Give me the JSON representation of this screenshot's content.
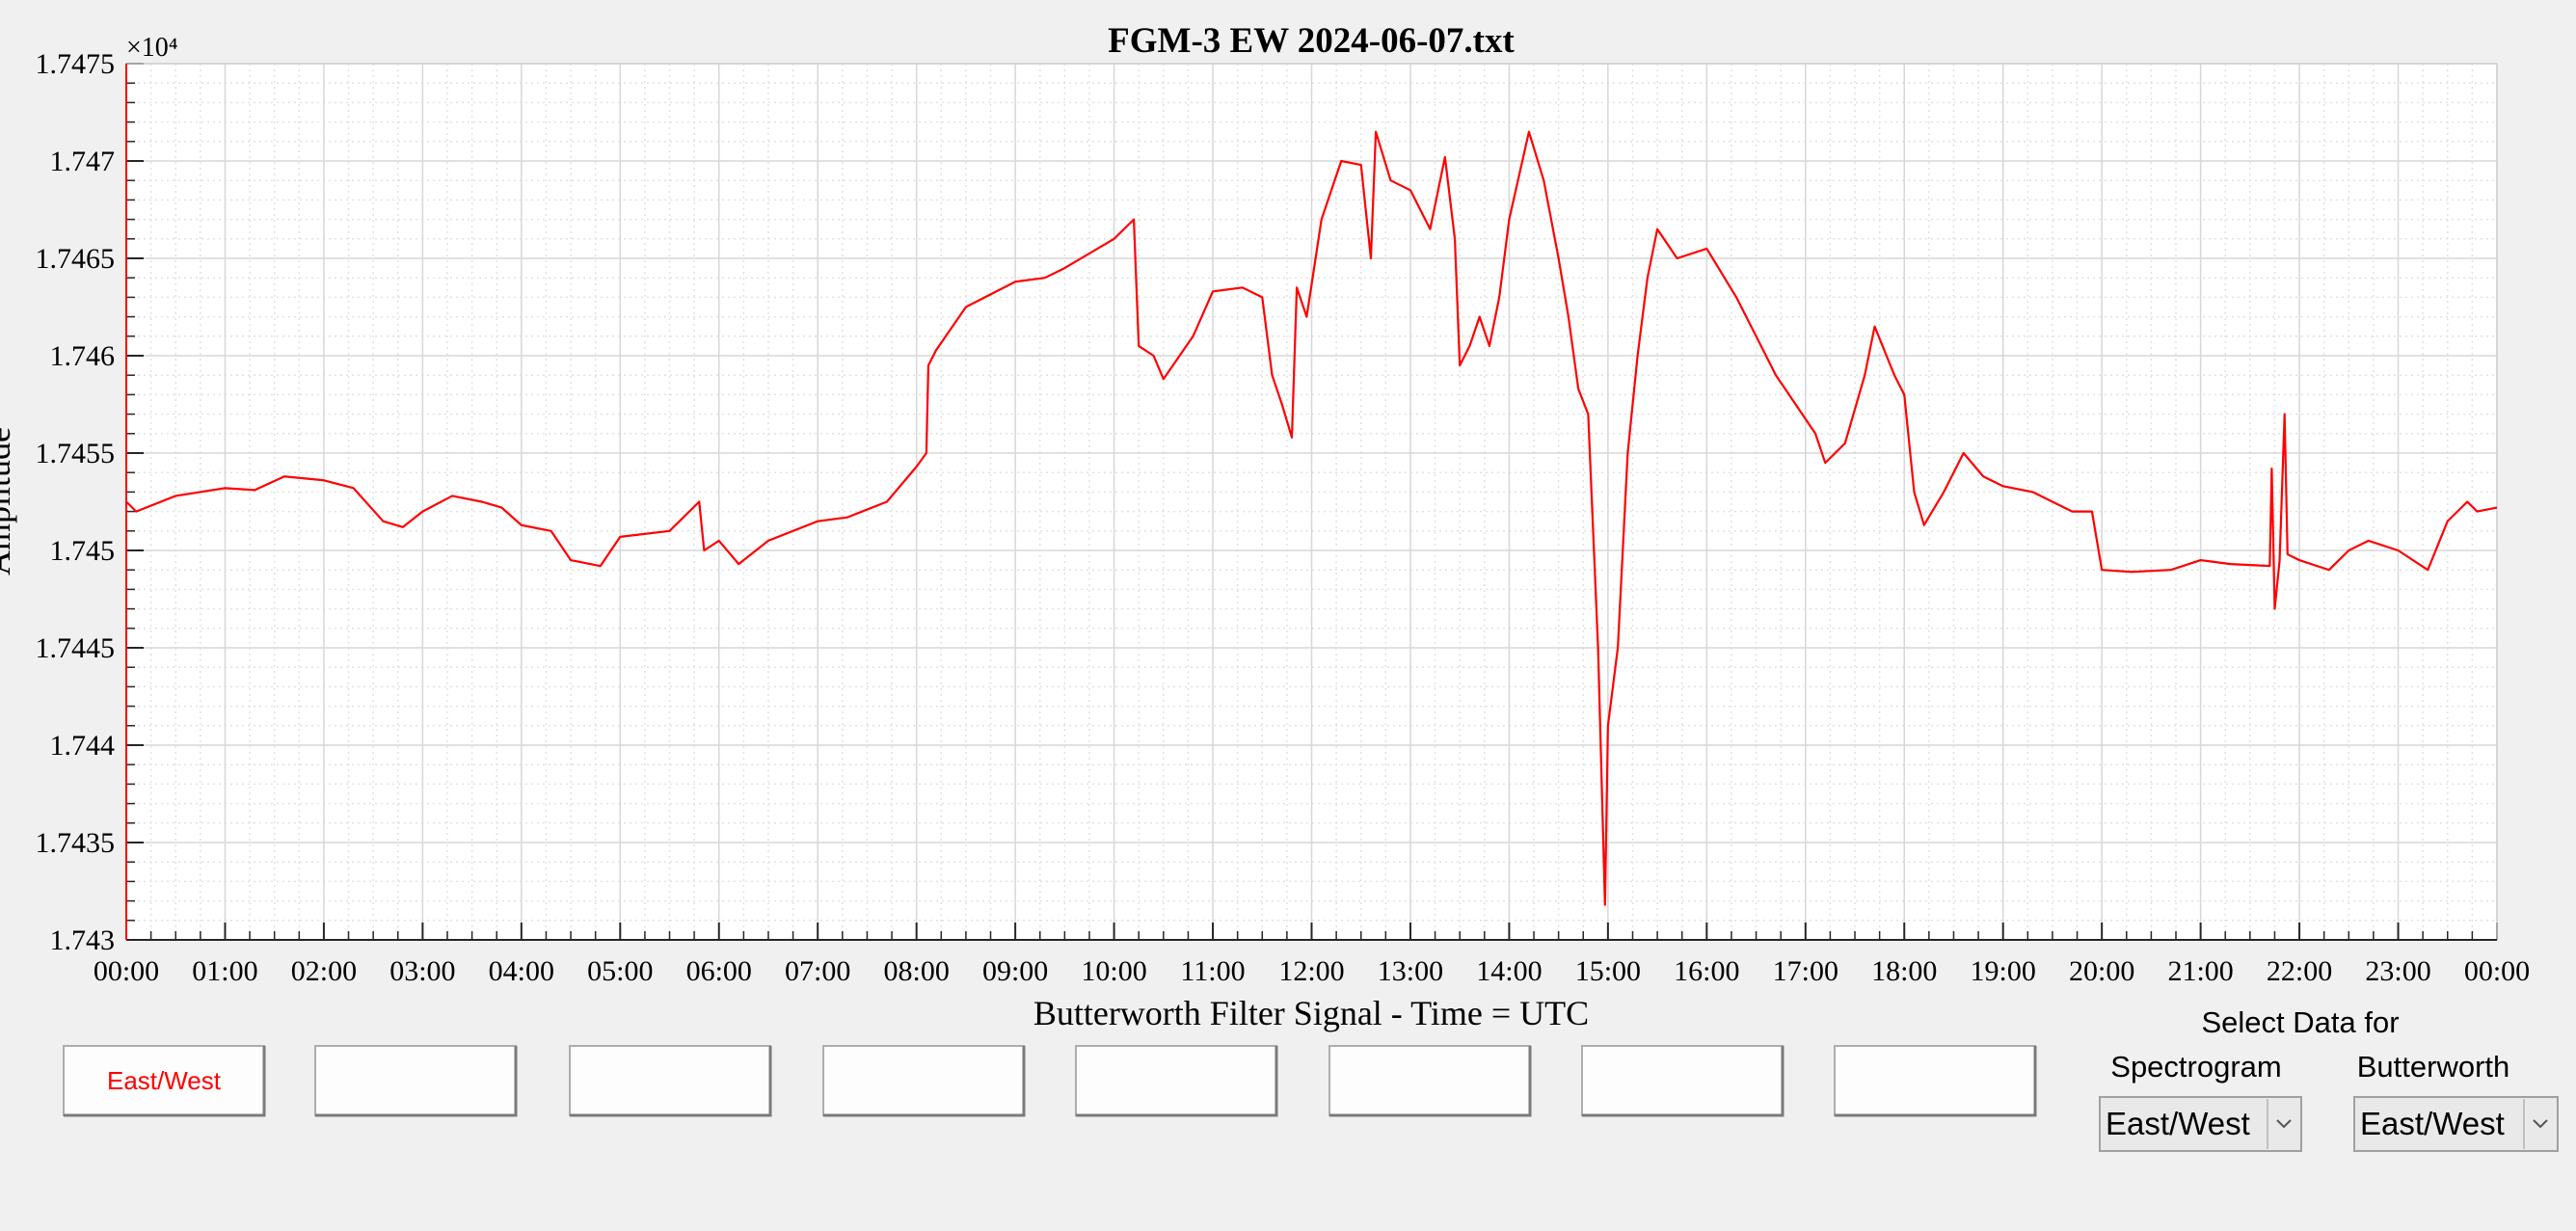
{
  "chart_data": {
    "type": "line",
    "title": "FGM-3 EW 2024-06-07.txt",
    "x_label": "Butterworth Filter Signal - Time = UTC",
    "y_label": "Amplitude",
    "y_exponent": "×10⁴",
    "color": "#ff0000",
    "grid": true,
    "xlim": [
      0,
      24
    ],
    "xticks": [
      {
        "value": 0,
        "label": "00:00"
      },
      {
        "value": 1,
        "label": "01:00"
      },
      {
        "value": 2,
        "label": "02:00"
      },
      {
        "value": 3,
        "label": "03:00"
      },
      {
        "value": 4,
        "label": "04:00"
      },
      {
        "value": 5,
        "label": "05:00"
      },
      {
        "value": 6,
        "label": "06:00"
      },
      {
        "value": 7,
        "label": "07:00"
      },
      {
        "value": 8,
        "label": "08:00"
      },
      {
        "value": 9,
        "label": "09:00"
      },
      {
        "value": 10,
        "label": "10:00"
      },
      {
        "value": 11,
        "label": "11:00"
      },
      {
        "value": 12,
        "label": "12:00"
      },
      {
        "value": 13,
        "label": "13:00"
      },
      {
        "value": 14,
        "label": "14:00"
      },
      {
        "value": 15,
        "label": "15:00"
      },
      {
        "value": 16,
        "label": "16:00"
      },
      {
        "value": 17,
        "label": "17:00"
      },
      {
        "value": 18,
        "label": "18:00"
      },
      {
        "value": 19,
        "label": "19:00"
      },
      {
        "value": 20,
        "label": "20:00"
      },
      {
        "value": 21,
        "label": "21:00"
      },
      {
        "value": 22,
        "label": "22:00"
      },
      {
        "value": 23,
        "label": "23:00"
      },
      {
        "value": 24,
        "label": "00:00"
      }
    ],
    "ylim": [
      1.743,
      1.7475
    ],
    "yticks": [
      1.743,
      1.7435,
      1.744,
      1.7445,
      1.745,
      1.7455,
      1.746,
      1.7465,
      1.747,
      1.7475
    ],
    "x": [
      0,
      0.1,
      0.5,
      1,
      1.3,
      1.6,
      2,
      2.3,
      2.6,
      2.8,
      3,
      3.3,
      3.6,
      3.8,
      4,
      4.3,
      4.5,
      4.8,
      5,
      5.5,
      5.8,
      5.85,
      6,
      6.2,
      6.5,
      7,
      7.3,
      7.7,
      8,
      8.1,
      8.12,
      8.2,
      8.5,
      9,
      9.3,
      9.5,
      10,
      10.2,
      10.25,
      10.4,
      10.5,
      10.8,
      11,
      11.3,
      11.5,
      11.6,
      11.7,
      11.8,
      11.85,
      11.95,
      12.1,
      12.3,
      12.5,
      12.6,
      12.65,
      12.8,
      13,
      13.2,
      13.35,
      13.45,
      13.5,
      13.6,
      13.7,
      13.8,
      13.9,
      14,
      14.2,
      14.35,
      14.5,
      14.6,
      14.7,
      14.8,
      14.9,
      14.97,
      15,
      15.1,
      15.2,
      15.3,
      15.4,
      15.5,
      15.7,
      16,
      16.3,
      16.5,
      16.7,
      16.9,
      17.1,
      17.2,
      17.4,
      17.6,
      17.7,
      17.9,
      18,
      18.1,
      18.2,
      18.4,
      18.6,
      18.8,
      19,
      19.3,
      19.7,
      19.9,
      20,
      20.3,
      20.7,
      21,
      21.3,
      21.7,
      21.72,
      21.75,
      21.8,
      21.85,
      21.88,
      22,
      22.3,
      22.5,
      22.7,
      23,
      23.3,
      23.5,
      23.7,
      23.8,
      24
    ],
    "values": [
      1.74525,
      1.7452,
      1.74528,
      1.74532,
      1.74531,
      1.74538,
      1.74536,
      1.74532,
      1.74515,
      1.74512,
      1.7452,
      1.74528,
      1.74525,
      1.74522,
      1.74513,
      1.7451,
      1.74495,
      1.74492,
      1.74507,
      1.7451,
      1.74525,
      1.745,
      1.74505,
      1.74493,
      1.74505,
      1.74515,
      1.74517,
      1.74525,
      1.74543,
      1.7455,
      1.74595,
      1.74603,
      1.74625,
      1.74638,
      1.7464,
      1.74645,
      1.7466,
      1.7467,
      1.74605,
      1.746,
      1.74588,
      1.7461,
      1.74633,
      1.74635,
      1.7463,
      1.7459,
      1.74575,
      1.74558,
      1.74635,
      1.7462,
      1.7467,
      1.747,
      1.74698,
      1.7465,
      1.74715,
      1.7469,
      1.74685,
      1.74665,
      1.74702,
      1.7466,
      1.74595,
      1.74605,
      1.7462,
      1.74605,
      1.7463,
      1.7467,
      1.74715,
      1.7469,
      1.7465,
      1.7462,
      1.74583,
      1.7457,
      1.7445,
      1.74318,
      1.7441,
      1.7445,
      1.7455,
      1.746,
      1.7464,
      1.74665,
      1.7465,
      1.74655,
      1.7463,
      1.7461,
      1.7459,
      1.74575,
      1.7456,
      1.74545,
      1.74555,
      1.7459,
      1.74615,
      1.7459,
      1.7458,
      1.7453,
      1.74513,
      1.7453,
      1.7455,
      1.74538,
      1.74533,
      1.7453,
      1.7452,
      1.7452,
      1.7449,
      1.74489,
      1.7449,
      1.74495,
      1.74493,
      1.74492,
      1.74542,
      1.7447,
      1.74495,
      1.7457,
      1.74498,
      1.74495,
      1.7449,
      1.745,
      1.74505,
      1.745,
      1.7449,
      1.74515,
      1.74525,
      1.7452,
      1.74522
    ]
  },
  "controls": {
    "channel_button": "East/West",
    "select_title": "Select Data for",
    "spectrogram_label": "Spectrogram",
    "butterworth_label": "Butterworth",
    "spectrogram_choice": "East/West",
    "butterworth_choice": "East/West"
  }
}
